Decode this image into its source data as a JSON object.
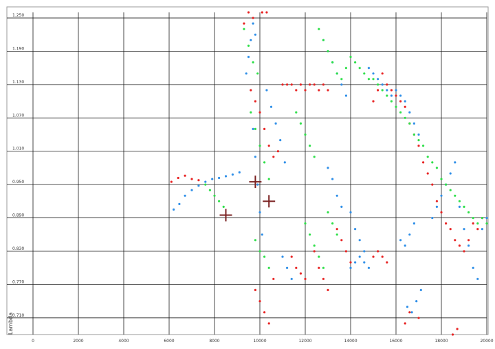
{
  "chart_data": {
    "type": "scatter",
    "title": "",
    "xlabel": "",
    "ylabel": "Lambda",
    "xlim": [
      0,
      20000
    ],
    "ylim": [
      0.68,
      1.26
    ],
    "grid": true,
    "x_ticks": [
      "0",
      "2000",
      "4000",
      "6000",
      "8000",
      "10000",
      "12000",
      "14000",
      "16000",
      "18000",
      "20000"
    ],
    "y_ticks": [
      "1.250",
      "1.190",
      "1.130",
      "1.070",
      "1.010",
      "0.950",
      "0.890",
      "0.830",
      "0.770",
      "0.710"
    ],
    "series": [
      {
        "color": "#2f8fe8",
        "values": [
          [
            6200,
            0.905
          ],
          [
            6450,
            0.915
          ],
          [
            6700,
            0.93
          ],
          [
            7000,
            0.94
          ],
          [
            7300,
            0.948
          ],
          [
            7600,
            0.955
          ],
          [
            7900,
            0.96
          ],
          [
            8200,
            0.962
          ],
          [
            8500,
            0.965
          ],
          [
            8800,
            0.968
          ],
          [
            9100,
            0.972
          ],
          [
            9400,
            1.15
          ],
          [
            9500,
            1.18
          ],
          [
            9600,
            1.21
          ],
          [
            9700,
            1.24
          ],
          [
            9800,
            1.22
          ],
          [
            9700,
            1.05
          ],
          [
            9800,
            1.0
          ],
          [
            9900,
            0.95
          ],
          [
            10000,
            0.9
          ],
          [
            10100,
            0.86
          ],
          [
            10300,
            1.12
          ],
          [
            10500,
            1.09
          ],
          [
            10700,
            1.06
          ],
          [
            10900,
            1.03
          ],
          [
            11100,
            0.99
          ],
          [
            11000,
            0.82
          ],
          [
            11200,
            0.8
          ],
          [
            11400,
            0.78
          ],
          [
            12800,
            1.21
          ],
          [
            13000,
            1.19
          ],
          [
            13200,
            1.17
          ],
          [
            13400,
            1.15
          ],
          [
            13600,
            1.13
          ],
          [
            13800,
            1.11
          ],
          [
            13000,
            0.98
          ],
          [
            13200,
            0.96
          ],
          [
            13400,
            0.93
          ],
          [
            13600,
            0.91
          ],
          [
            14000,
            0.9
          ],
          [
            14200,
            0.87
          ],
          [
            14400,
            0.85
          ],
          [
            14600,
            0.83
          ],
          [
            14000,
            0.8
          ],
          [
            14200,
            0.81
          ],
          [
            14400,
            0.82
          ],
          [
            14600,
            0.81
          ],
          [
            14800,
            0.8
          ],
          [
            14800,
            1.16
          ],
          [
            15000,
            1.15
          ],
          [
            15200,
            1.14
          ],
          [
            15400,
            1.13
          ],
          [
            15600,
            1.12
          ],
          [
            15800,
            1.11
          ],
          [
            16000,
            1.12
          ],
          [
            16200,
            1.11
          ],
          [
            16400,
            1.1
          ],
          [
            16600,
            1.08
          ],
          [
            16800,
            1.06
          ],
          [
            17000,
            1.04
          ],
          [
            16200,
            0.85
          ],
          [
            16400,
            0.84
          ],
          [
            16600,
            0.86
          ],
          [
            16800,
            0.88
          ],
          [
            16500,
            0.73
          ],
          [
            16700,
            0.72
          ],
          [
            16900,
            0.74
          ],
          [
            17100,
            0.76
          ],
          [
            17600,
            0.89
          ],
          [
            17800,
            0.91
          ],
          [
            18000,
            0.93
          ],
          [
            18200,
            0.95
          ],
          [
            18400,
            0.97
          ],
          [
            18600,
            0.99
          ],
          [
            18800,
            0.91
          ],
          [
            19000,
            0.87
          ],
          [
            19200,
            0.84
          ],
          [
            19400,
            0.8
          ],
          [
            19600,
            0.78
          ],
          [
            19800,
            0.87
          ],
          [
            20000,
            0.89
          ]
        ]
      },
      {
        "color": "#e82424",
        "values": [
          [
            6100,
            0.955
          ],
          [
            6400,
            0.962
          ],
          [
            6700,
            0.966
          ],
          [
            7000,
            0.96
          ],
          [
            7300,
            0.958
          ],
          [
            9300,
            1.24
          ],
          [
            9500,
            1.26
          ],
          [
            9700,
            1.25
          ],
          [
            10100,
            1.26
          ],
          [
            10300,
            1.26
          ],
          [
            9600,
            1.12
          ],
          [
            9800,
            1.1
          ],
          [
            10000,
            1.08
          ],
          [
            10200,
            1.05
          ],
          [
            10400,
            1.02
          ],
          [
            10600,
            1.0
          ],
          [
            10800,
            1.01
          ],
          [
            11000,
            1.13
          ],
          [
            11200,
            1.13
          ],
          [
            11400,
            1.13
          ],
          [
            11600,
            1.12
          ],
          [
            11800,
            1.13
          ],
          [
            12000,
            1.12
          ],
          [
            12200,
            1.13
          ],
          [
            12400,
            1.13
          ],
          [
            12600,
            1.12
          ],
          [
            12800,
            1.13
          ],
          [
            13000,
            1.12
          ],
          [
            9800,
            0.76
          ],
          [
            10000,
            0.74
          ],
          [
            10200,
            0.72
          ],
          [
            10400,
            0.7
          ],
          [
            10600,
            0.78
          ],
          [
            11400,
            0.82
          ],
          [
            11600,
            0.8
          ],
          [
            11800,
            0.79
          ],
          [
            12000,
            0.78
          ],
          [
            12400,
            0.83
          ],
          [
            12600,
            0.8
          ],
          [
            12800,
            0.78
          ],
          [
            13000,
            0.76
          ],
          [
            13400,
            0.87
          ],
          [
            13600,
            0.85
          ],
          [
            13800,
            0.83
          ],
          [
            14000,
            0.81
          ],
          [
            15000,
            0.82
          ],
          [
            15200,
            0.83
          ],
          [
            15400,
            0.82
          ],
          [
            15600,
            0.81
          ],
          [
            15000,
            1.1
          ],
          [
            15200,
            1.12
          ],
          [
            15400,
            1.15
          ],
          [
            15600,
            1.13
          ],
          [
            15800,
            1.12
          ],
          [
            16000,
            1.11
          ],
          [
            16200,
            1.1
          ],
          [
            16400,
            1.09
          ],
          [
            16600,
            1.06
          ],
          [
            16800,
            1.04
          ],
          [
            17000,
            1.02
          ],
          [
            17200,
            0.99
          ],
          [
            17400,
            0.97
          ],
          [
            17600,
            0.95
          ],
          [
            17800,
            0.92
          ],
          [
            18000,
            0.9
          ],
          [
            18200,
            0.88
          ],
          [
            18400,
            0.87
          ],
          [
            18600,
            0.85
          ],
          [
            18800,
            0.84
          ],
          [
            19000,
            0.83
          ],
          [
            19200,
            0.85
          ],
          [
            19400,
            0.88
          ],
          [
            19600,
            0.87
          ],
          [
            19800,
            0.89
          ],
          [
            16400,
            0.7
          ],
          [
            16600,
            0.72
          ],
          [
            17000,
            0.71
          ],
          [
            18500,
            0.68
          ],
          [
            18700,
            0.69
          ]
        ]
      },
      {
        "color": "#2fe04a",
        "values": [
          [
            7600,
            0.95
          ],
          [
            7800,
            0.94
          ],
          [
            8000,
            0.93
          ],
          [
            8200,
            0.92
          ],
          [
            8400,
            0.91
          ],
          [
            9300,
            1.23
          ],
          [
            9500,
            1.2
          ],
          [
            9700,
            1.17
          ],
          [
            9900,
            1.15
          ],
          [
            9600,
            1.08
          ],
          [
            9800,
            1.05
          ],
          [
            10000,
            1.02
          ],
          [
            10200,
            0.99
          ],
          [
            10400,
            0.96
          ],
          [
            9800,
            0.85
          ],
          [
            10000,
            0.83
          ],
          [
            10200,
            0.82
          ],
          [
            10400,
            0.8
          ],
          [
            11600,
            1.08
          ],
          [
            11800,
            1.06
          ],
          [
            12000,
            1.04
          ],
          [
            12200,
            1.02
          ],
          [
            12400,
            1.0
          ],
          [
            12600,
            1.23
          ],
          [
            12800,
            1.21
          ],
          [
            13000,
            1.19
          ],
          [
            13200,
            1.17
          ],
          [
            13400,
            1.15
          ],
          [
            13600,
            1.14
          ],
          [
            13800,
            1.16
          ],
          [
            14000,
            1.18
          ],
          [
            14200,
            1.17
          ],
          [
            14400,
            1.16
          ],
          [
            14600,
            1.15
          ],
          [
            14800,
            1.14
          ],
          [
            15000,
            1.14
          ],
          [
            15200,
            1.13
          ],
          [
            15400,
            1.12
          ],
          [
            15600,
            1.11
          ],
          [
            15800,
            1.1
          ],
          [
            16000,
            1.09
          ],
          [
            16200,
            1.08
          ],
          [
            16400,
            1.07
          ],
          [
            16600,
            1.06
          ],
          [
            16800,
            1.04
          ],
          [
            17000,
            1.03
          ],
          [
            17200,
            1.02
          ],
          [
            17400,
            1.0
          ],
          [
            17600,
            0.99
          ],
          [
            17800,
            0.98
          ],
          [
            18000,
            0.96
          ],
          [
            18200,
            0.95
          ],
          [
            18400,
            0.94
          ],
          [
            18600,
            0.93
          ],
          [
            18800,
            0.92
          ],
          [
            19000,
            0.91
          ],
          [
            19200,
            0.9
          ],
          [
            19400,
            0.89
          ],
          [
            19600,
            0.88
          ],
          [
            19800,
            0.89
          ],
          [
            20000,
            0.88
          ],
          [
            12000,
            0.88
          ],
          [
            12200,
            0.86
          ],
          [
            12400,
            0.84
          ],
          [
            12600,
            0.82
          ],
          [
            12800,
            0.8
          ],
          [
            13000,
            0.9
          ],
          [
            13200,
            0.88
          ],
          [
            13400,
            0.86
          ]
        ]
      },
      {
        "color": "#7a2020",
        "values": [
          [
            8500,
            0.895
          ],
          [
            9800,
            0.955
          ],
          [
            10400,
            0.92
          ]
        ]
      }
    ]
  }
}
